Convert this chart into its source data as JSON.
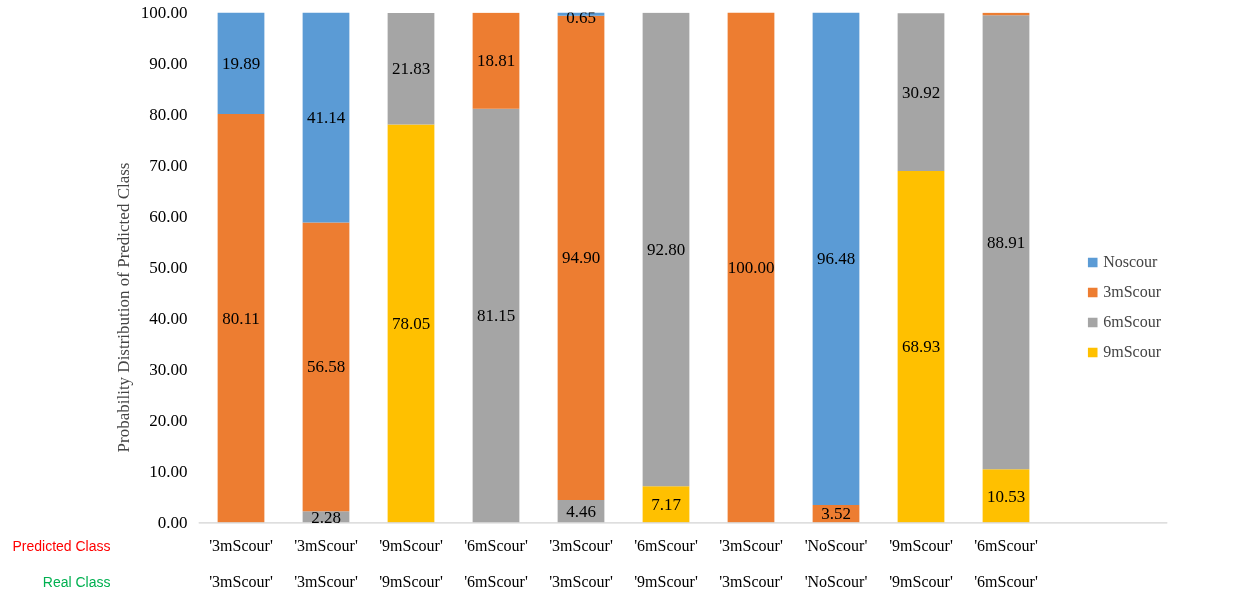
{
  "chart_data": {
    "type": "bar",
    "stacked": true,
    "ylabel": "Probability Distribution of Predicted Class",
    "categories": [
      "'3mScour'\n'3mScour'",
      "'3mScour'\n'3mScour'",
      "'9mScour'\n'9mScour'",
      "'6mScour'\n'6mScour'",
      "'3mScour'\n'3mScour'",
      "'6mScour'\n'9mScour'",
      "'3mScour'\n'3mScour'",
      "'NoScour'\n'NoScour'",
      "'9mScour'\n'9mScour'",
      "'6mScour'\n'6mScour'"
    ],
    "annotations": [
      "Predicted Class",
      "Real Class"
    ],
    "series": [
      {
        "name": "9mScour",
        "color": "#ffc000",
        "values": [
          0,
          0,
          78.05,
          0,
          0,
          7.17,
          0,
          0,
          68.93,
          10.53
        ],
        "value_labels": [
          null,
          null,
          "78.05",
          null,
          null,
          "7.17",
          null,
          null,
          "68.93",
          "10.53"
        ]
      },
      {
        "name": "6mScour",
        "color": "#a5a5a5",
        "values": [
          0,
          2.28,
          21.83,
          81.15,
          4.46,
          92.8,
          0,
          0,
          30.92,
          88.91
        ],
        "value_labels": [
          null,
          "2.28",
          "21.83",
          "81.15",
          "4.46",
          "92.80",
          null,
          null,
          "30.92",
          "88.91"
        ]
      },
      {
        "name": "3mScour",
        "color": "#ed7d31",
        "values": [
          80.11,
          56.58,
          null,
          18.81,
          94.9,
          null,
          100,
          3.52,
          null,
          0.5
        ],
        "value_labels": [
          "80.11",
          "56.58",
          null,
          "18.81",
          "94.90",
          null,
          "100.00",
          "3.52",
          null,
          null
        ]
      },
      {
        "name": "Noscour",
        "color": "#5b9bd5",
        "values": [
          19.89,
          41.14,
          0,
          null,
          0.65,
          0,
          0,
          96.48,
          0,
          null
        ],
        "value_labels": [
          "19.89",
          "41.14",
          null,
          null,
          "0.65",
          null,
          null,
          "96.48",
          null,
          null
        ]
      }
    ],
    "ylim": [
      0,
      100
    ],
    "yticks": [
      {
        "value": 0,
        "label": "0.00"
      },
      {
        "value": 10,
        "label": "10.00"
      },
      {
        "value": 20,
        "label": "20.00"
      },
      {
        "value": 30,
        "label": "30.00"
      },
      {
        "value": 40,
        "label": "40.00"
      },
      {
        "value": 50,
        "label": "50.00"
      },
      {
        "value": 60,
        "label": "60.00"
      },
      {
        "value": 70,
        "label": "70.00"
      },
      {
        "value": 80,
        "label": "80.00"
      },
      {
        "value": 90,
        "label": "90.00"
      },
      {
        "value": 100,
        "label": "100.00"
      }
    ],
    "legend": "right",
    "grid": false
  }
}
